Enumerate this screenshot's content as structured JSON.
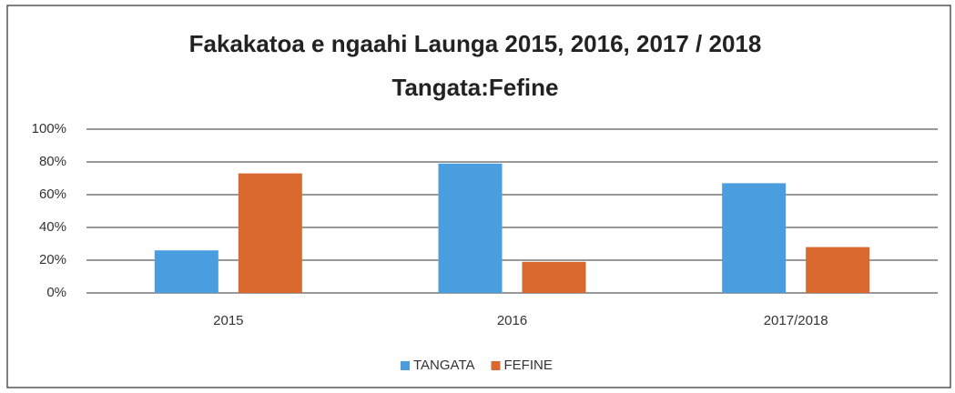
{
  "chart_data": {
    "type": "bar",
    "title": "Fakakatoa e ngaahi Launga 2015, 2016, 2017 / 2018",
    "subtitle": "Tangata:Fefine",
    "categories": [
      "2015",
      "2016",
      "2017/2018"
    ],
    "series": [
      {
        "name": "TANGATA",
        "color": "#4a9ee0",
        "values": [
          26,
          79,
          67
        ]
      },
      {
        "name": "FEFINE",
        "color": "#d9692e",
        "values": [
          73,
          19,
          28
        ]
      }
    ],
    "ylim": [
      0,
      100
    ],
    "yticks": [
      {
        "value": 0,
        "label": "0%"
      },
      {
        "value": 20,
        "label": "20%"
      },
      {
        "value": 40,
        "label": "40%"
      },
      {
        "value": 60,
        "label": "60%"
      },
      {
        "value": 80,
        "label": "80%"
      },
      {
        "value": 100,
        "label": "100%"
      }
    ],
    "grid": true,
    "legend": "bottom"
  }
}
